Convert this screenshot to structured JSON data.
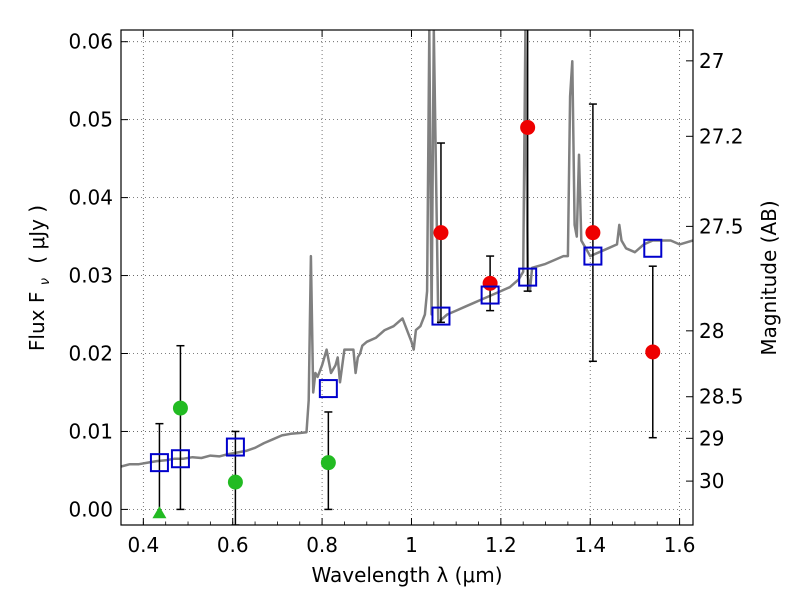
{
  "chart_data": {
    "type": "scatter",
    "xlabel": "Wavelength  λ (μm)",
    "ylabel_left": "Flux  F",
    "ylabel_left_sub": "ν",
    "ylabel_left_unit": "( μJy )",
    "ylabel_right": "Magnitude (AB)",
    "xlim": [
      0.35,
      1.63
    ],
    "ylim": [
      -0.002,
      0.0615
    ],
    "grid": true,
    "x_ticks": [
      {
        "v": 0.4,
        "label": "0.4"
      },
      {
        "v": 0.6,
        "label": "0.6"
      },
      {
        "v": 0.8,
        "label": "0.8"
      },
      {
        "v": 1.0,
        "label": "1"
      },
      {
        "v": 1.2,
        "label": "1.2"
      },
      {
        "v": 1.4,
        "label": "1.4"
      },
      {
        "v": 1.6,
        "label": "1.6"
      }
    ],
    "y_ticks": [
      {
        "v": 0.0,
        "label": "0.00"
      },
      {
        "v": 0.01,
        "label": "0.01"
      },
      {
        "v": 0.02,
        "label": "0.02"
      },
      {
        "v": 0.03,
        "label": "0.03"
      },
      {
        "v": 0.04,
        "label": "0.04"
      },
      {
        "v": 0.05,
        "label": "0.05"
      },
      {
        "v": 0.06,
        "label": "0.06"
      }
    ],
    "mag_ticks": [
      {
        "v": 27.0,
        "label": "27"
      },
      {
        "v": 27.2,
        "label": "27.2"
      },
      {
        "v": 27.5,
        "label": "27.5"
      },
      {
        "v": 28.0,
        "label": "28"
      },
      {
        "v": 28.5,
        "label": "28.5"
      },
      {
        "v": 29.0,
        "label": "29"
      },
      {
        "v": 30.0,
        "label": "30"
      }
    ],
    "colors": {
      "model": "#808080",
      "green": "#22bb22",
      "red": "#ee0000",
      "blue": "#0000cc",
      "errorbar": "#000000",
      "grid": "#555555"
    },
    "model_sed": {
      "x": [
        0.35,
        0.37,
        0.39,
        0.41,
        0.43,
        0.45,
        0.47,
        0.49,
        0.51,
        0.53,
        0.55,
        0.57,
        0.59,
        0.61,
        0.63,
        0.65,
        0.67,
        0.69,
        0.71,
        0.73,
        0.75,
        0.765,
        0.77,
        0.775,
        0.78,
        0.785,
        0.79,
        0.8,
        0.81,
        0.82,
        0.83,
        0.835,
        0.84,
        0.85,
        0.86,
        0.87,
        0.875,
        0.88,
        0.885,
        0.89,
        0.9,
        0.92,
        0.94,
        0.96,
        0.98,
        1.0,
        1.005,
        1.01,
        1.02,
        1.03,
        1.035,
        1.04,
        1.045,
        1.05,
        1.06,
        1.08,
        1.1,
        1.12,
        1.14,
        1.16,
        1.18,
        1.2,
        1.22,
        1.24,
        1.25,
        1.255,
        1.26,
        1.265,
        1.27,
        1.3,
        1.32,
        1.34,
        1.35,
        1.355,
        1.36,
        1.365,
        1.37,
        1.375,
        1.38,
        1.385,
        1.39,
        1.4,
        1.42,
        1.44,
        1.46,
        1.465,
        1.47,
        1.48,
        1.5,
        1.52,
        1.54,
        1.56,
        1.58,
        1.6,
        1.63
      ],
      "y": [
        0.0055,
        0.0058,
        0.0058,
        0.006,
        0.0062,
        0.0063,
        0.0065,
        0.0065,
        0.0067,
        0.0066,
        0.0069,
        0.0068,
        0.0071,
        0.0073,
        0.0075,
        0.0079,
        0.0085,
        0.009,
        0.0095,
        0.0097,
        0.0098,
        0.0099,
        0.014,
        0.0325,
        0.015,
        0.0175,
        0.017,
        0.0185,
        0.0205,
        0.0175,
        0.0185,
        0.0195,
        0.0163,
        0.0205,
        0.0205,
        0.0205,
        0.0175,
        0.0195,
        0.02,
        0.021,
        0.0215,
        0.022,
        0.023,
        0.0235,
        0.0245,
        0.0215,
        0.0205,
        0.023,
        0.0235,
        0.025,
        0.028,
        0.0615,
        0.025,
        0.0615,
        0.024,
        0.025,
        0.0255,
        0.026,
        0.0265,
        0.027,
        0.0275,
        0.028,
        0.0285,
        0.0295,
        0.0305,
        0.0615,
        0.03,
        0.028,
        0.031,
        0.0315,
        0.032,
        0.0325,
        0.0325,
        0.053,
        0.0575,
        0.0365,
        0.035,
        0.0455,
        0.0345,
        0.034,
        0.0335,
        0.0325,
        0.033,
        0.0335,
        0.034,
        0.0365,
        0.0345,
        0.0335,
        0.033,
        0.034,
        0.0345,
        0.0345,
        0.0345,
        0.034,
        0.0345
      ]
    },
    "green_points": [
      {
        "x": 0.436,
        "y": -0.0005,
        "yerr_low": 0.0005,
        "yerr_high": 0.0115,
        "marker": "triangle"
      },
      {
        "x": 0.483,
        "y": 0.013,
        "yerr_low": 0.013,
        "yerr_high": 0.008,
        "marker": "circle"
      },
      {
        "x": 0.606,
        "y": 0.0035,
        "yerr_low": 0.0055,
        "yerr_high": 0.0065,
        "marker": "circle"
      },
      {
        "x": 0.814,
        "y": 0.006,
        "yerr_low": 0.006,
        "yerr_high": 0.0065,
        "marker": "circle"
      }
    ],
    "red_points": [
      {
        "x": 1.066,
        "y": 0.0355,
        "yerr_low": 0.0115,
        "yerr_high": 0.0115
      },
      {
        "x": 1.176,
        "y": 0.029,
        "yerr_low": 0.0035,
        "yerr_high": 0.0035
      },
      {
        "x": 1.26,
        "y": 0.049,
        "yerr_low": 0.021,
        "yerr_high": 0.013
      },
      {
        "x": 1.406,
        "y": 0.0355,
        "yerr_low": 0.0165,
        "yerr_high": 0.0165
      },
      {
        "x": 1.54,
        "y": 0.0202,
        "yerr_low": 0.011,
        "yerr_high": 0.011
      }
    ],
    "blue_squares": [
      {
        "x": 0.436,
        "y": 0.006
      },
      {
        "x": 0.483,
        "y": 0.0065
      },
      {
        "x": 0.606,
        "y": 0.008
      },
      {
        "x": 0.814,
        "y": 0.0155
      },
      {
        "x": 1.066,
        "y": 0.0248
      },
      {
        "x": 1.176,
        "y": 0.0275
      },
      {
        "x": 1.26,
        "y": 0.0298
      },
      {
        "x": 1.406,
        "y": 0.0325
      },
      {
        "x": 1.54,
        "y": 0.0335
      }
    ]
  }
}
